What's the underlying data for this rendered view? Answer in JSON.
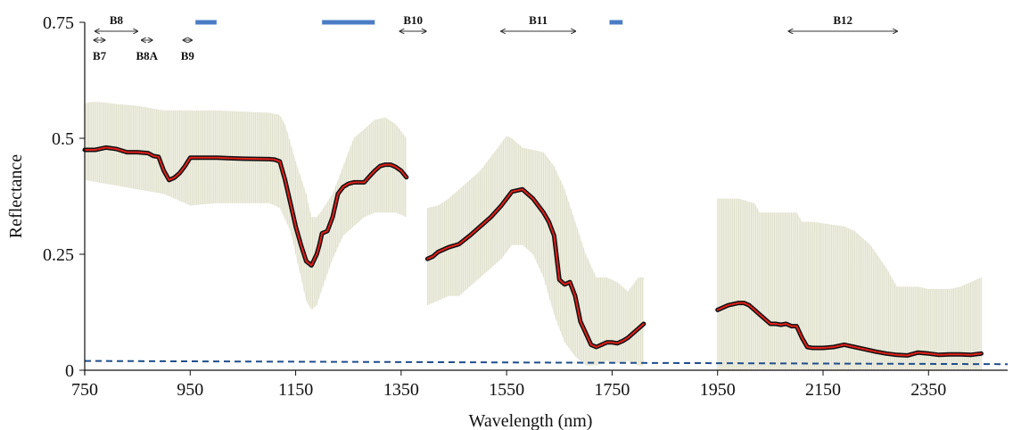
{
  "chart_data": {
    "type": "line",
    "title": "",
    "xlabel": "Wavelength (nm)",
    "ylabel": "Reflectance",
    "xlim": [
      750,
      2500
    ],
    "ylim": [
      0,
      0.75
    ],
    "x_ticks": [
      750,
      950,
      1150,
      1350,
      1550,
      1750,
      1950,
      2150,
      2350
    ],
    "y_ticks": [
      {
        "value": 0,
        "label": "0"
      },
      {
        "value": 0.25,
        "label": "0.25"
      },
      {
        "value": 0.5,
        "label": "0.5"
      },
      {
        "value": 0.75,
        "label": "0.75"
      }
    ],
    "grid": false,
    "colors": {
      "mean_line": "#e0201b",
      "mean_outline": "#111111",
      "band_fill": "#eeeee2",
      "reference_line": "#1f4e8c",
      "absorption_marker": "#4a7cc4",
      "arrow": "#333333"
    },
    "series": [
      {
        "role": "mean",
        "segments": [
          {
            "x": [
              750,
              770,
              790,
              810,
              830,
              850,
              870,
              880,
              890,
              900,
              910,
              920,
              930,
              940,
              950,
              1000,
              1050,
              1100,
              1110,
              1120,
              1130,
              1140,
              1150,
              1160,
              1170,
              1180,
              1190,
              1195,
              1200,
              1210,
              1220,
              1230,
              1240,
              1250,
              1260,
              1270,
              1280,
              1290,
              1300,
              1310,
              1320,
              1330,
              1340,
              1350,
              1360
            ],
            "y": [
              0.475,
              0.475,
              0.48,
              0.477,
              0.47,
              0.47,
              0.468,
              0.462,
              0.46,
              0.43,
              0.41,
              0.415,
              0.425,
              0.44,
              0.458,
              0.458,
              0.456,
              0.455,
              0.454,
              0.45,
              0.41,
              0.36,
              0.31,
              0.27,
              0.235,
              0.226,
              0.25,
              0.27,
              0.295,
              0.3,
              0.33,
              0.38,
              0.395,
              0.402,
              0.405,
              0.405,
              0.405,
              0.418,
              0.43,
              0.44,
              0.443,
              0.443,
              0.438,
              0.43,
              0.416
            ]
          },
          {
            "x": [
              1400,
              1410,
              1420,
              1440,
              1460,
              1480,
              1500,
              1520,
              1540,
              1560,
              1580,
              1600,
              1620,
              1630,
              1640,
              1650,
              1660,
              1670,
              1680,
              1690,
              1700,
              1710,
              1720,
              1730,
              1740,
              1750,
              1760,
              1770,
              1780,
              1790,
              1800,
              1810
            ],
            "y": [
              0.24,
              0.245,
              0.255,
              0.265,
              0.272,
              0.29,
              0.31,
              0.33,
              0.355,
              0.385,
              0.39,
              0.37,
              0.34,
              0.32,
              0.29,
              0.195,
              0.185,
              0.19,
              0.16,
              0.105,
              0.08,
              0.055,
              0.05,
              0.055,
              0.06,
              0.06,
              0.058,
              0.063,
              0.07,
              0.08,
              0.09,
              0.1
            ]
          },
          {
            "x": [
              1950,
              1970,
              1990,
              2000,
              2010,
              2020,
              2030,
              2040,
              2050,
              2060,
              2070,
              2080,
              2090,
              2100,
              2110,
              2120,
              2130,
              2140,
              2150,
              2170,
              2190,
              2210,
              2230,
              2250,
              2270,
              2290,
              2310,
              2330,
              2350,
              2370,
              2390,
              2410,
              2430,
              2450
            ],
            "y": [
              0.13,
              0.14,
              0.145,
              0.145,
              0.14,
              0.13,
              0.12,
              0.11,
              0.1,
              0.1,
              0.098,
              0.1,
              0.095,
              0.095,
              0.07,
              0.05,
              0.048,
              0.048,
              0.048,
              0.05,
              0.055,
              0.05,
              0.045,
              0.04,
              0.036,
              0.033,
              0.032,
              0.038,
              0.036,
              0.033,
              0.034,
              0.034,
              0.033,
              0.036
            ]
          }
        ]
      },
      {
        "role": "upper_envelope",
        "segments": [
          {
            "x": [
              750,
              760,
              780,
              790,
              800,
              850,
              900,
              950,
              1000,
              1100,
              1120,
              1130,
              1150,
              1170,
              1180,
              1190,
              1200,
              1220,
              1240,
              1260,
              1280,
              1300,
              1320,
              1340,
              1360
            ],
            "y": [
              0.575,
              0.578,
              0.578,
              0.577,
              0.575,
              0.57,
              0.56,
              0.56,
              0.56,
              0.555,
              0.55,
              0.53,
              0.45,
              0.38,
              0.33,
              0.33,
              0.345,
              0.38,
              0.44,
              0.5,
              0.52,
              0.54,
              0.545,
              0.53,
              0.5
            ]
          },
          {
            "x": [
              1400,
              1420,
              1440,
              1460,
              1480,
              1500,
              1520,
              1540,
              1550,
              1560,
              1580,
              1600,
              1620,
              1640,
              1660,
              1680,
              1700,
              1720,
              1740,
              1760,
              1780,
              1800,
              1810
            ],
            "y": [
              0.35,
              0.355,
              0.37,
              0.39,
              0.41,
              0.43,
              0.46,
              0.49,
              0.505,
              0.5,
              0.48,
              0.475,
              0.47,
              0.44,
              0.39,
              0.32,
              0.25,
              0.2,
              0.2,
              0.19,
              0.17,
              0.2,
              0.2
            ]
          },
          {
            "x": [
              1950,
              1990,
              2020,
              2030,
              2060,
              2100,
              2110,
              2130,
              2160,
              2190,
              2210,
              2240,
              2270,
              2290,
              2310,
              2330,
              2350,
              2370,
              2390,
              2410,
              2430,
              2450
            ],
            "y": [
              0.37,
              0.37,
              0.36,
              0.34,
              0.34,
              0.34,
              0.32,
              0.32,
              0.315,
              0.31,
              0.3,
              0.27,
              0.22,
              0.18,
              0.18,
              0.18,
              0.175,
              0.175,
              0.175,
              0.18,
              0.19,
              0.2
            ]
          }
        ]
      },
      {
        "role": "lower_envelope",
        "segments": [
          {
            "x": [
              750,
              800,
              850,
              900,
              950,
              1000,
              1100,
              1120,
              1140,
              1160,
              1170,
              1180,
              1190,
              1200,
              1220,
              1240,
              1260,
              1280,
              1300,
              1320,
              1340,
              1360
            ],
            "y": [
              0.41,
              0.4,
              0.39,
              0.38,
              0.355,
              0.36,
              0.36,
              0.35,
              0.3,
              0.2,
              0.15,
              0.13,
              0.14,
              0.175,
              0.24,
              0.29,
              0.31,
              0.33,
              0.34,
              0.34,
              0.34,
              0.33
            ]
          },
          {
            "x": [
              1400,
              1420,
              1440,
              1460,
              1480,
              1500,
              1520,
              1540,
              1560,
              1580,
              1600,
              1620,
              1640,
              1660,
              1680,
              1700,
              1720,
              1740,
              1760,
              1780,
              1800,
              1810
            ],
            "y": [
              0.14,
              0.15,
              0.16,
              0.16,
              0.18,
              0.2,
              0.22,
              0.24,
              0.27,
              0.27,
              0.25,
              0.2,
              0.12,
              0.06,
              0.03,
              0.01,
              0.01,
              0.02,
              0.015,
              0.02,
              0.01,
              0.01
            ]
          },
          {
            "x": [
              1950,
              2450
            ],
            "y": [
              0,
              0
            ]
          }
        ]
      },
      {
        "role": "reference",
        "x": [
          750,
          2500
        ],
        "y": [
          0.02,
          0.013
        ]
      }
    ],
    "absorption_bands": [
      [
        960,
        1000
      ],
      [
        1200,
        1300
      ],
      [
        1745,
        1770
      ]
    ],
    "band_annotations": [
      {
        "label": "B7",
        "x_start": 768,
        "x_end": 788,
        "row": 2
      },
      {
        "label": "B8",
        "x_start": 770,
        "x_end": 850,
        "row": 1
      },
      {
        "label": "B8A",
        "x_start": 858,
        "x_end": 878,
        "row": 2
      },
      {
        "label": "B9",
        "x_start": 937,
        "x_end": 953,
        "row": 2
      },
      {
        "label": "B10",
        "x_start": 1348,
        "x_end": 1397,
        "row": 1
      },
      {
        "label": "B11",
        "x_start": 1540,
        "x_end": 1680,
        "row": 1
      },
      {
        "label": "B12",
        "x_start": 2085,
        "x_end": 2290,
        "row": 1
      }
    ]
  }
}
